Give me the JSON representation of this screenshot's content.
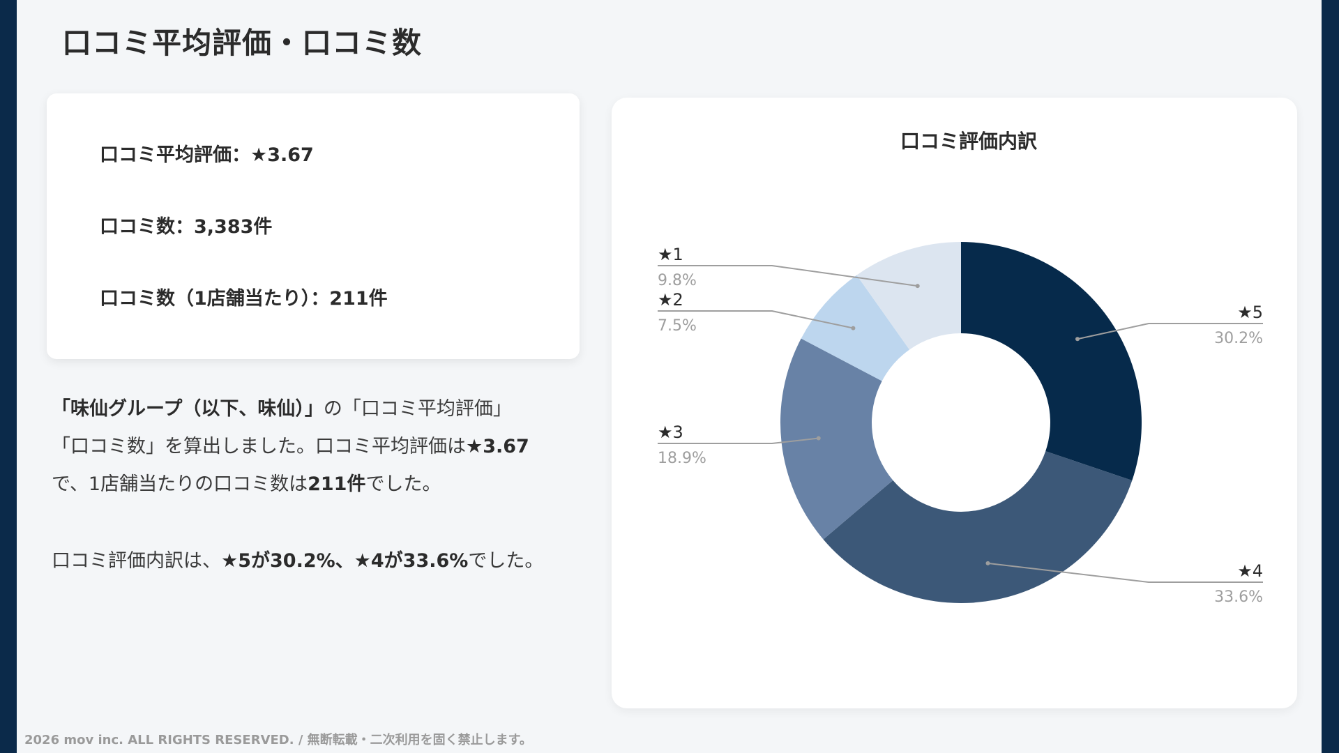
{
  "page": {
    "title": "口コミ平均評価・口コミ数",
    "footer": "2026 mov inc. ALL RIGHTS RESERVED. / 無断転載・二次利用を固く禁止します。"
  },
  "stats": {
    "avg_rating": "口コミ平均評価：★3.67",
    "review_count": "口コミ数：3,383件",
    "per_store": "口コミ数（1店舗当たり）：211件"
  },
  "description": {
    "line1_bold": "「味仙グループ（以下、味仙）」",
    "line1_rest": "の「口コミ平均評価」",
    "line2_a": "「口コミ数」を算出しました。口コミ平均評価は",
    "line2_b": "★3.67",
    "line3_a": "で、1店舗当たりの口コミ数は",
    "line3_b": "211件",
    "line3_c": "でした。",
    "line4_a": "口コミ評価内訳は、",
    "line4_b": "★5が30.2%、★4が33.6%",
    "line4_c": "でした。"
  },
  "chart_data": {
    "type": "pie",
    "title": "口コミ評価内訳",
    "donut": true,
    "slices": [
      {
        "label": "★5",
        "pct_label": "30.2%",
        "value": 30.2,
        "color": "#062a4b"
      },
      {
        "label": "★4",
        "pct_label": "33.6%",
        "value": 33.6,
        "color": "#3c5878"
      },
      {
        "label": "★3",
        "pct_label": "18.9%",
        "value": 18.9,
        "color": "#6882a6"
      },
      {
        "label": "★2",
        "pct_label": "7.5%",
        "value": 7.5,
        "color": "#bdd6ee"
      },
      {
        "label": "★1",
        "pct_label": "9.8%",
        "value": 9.8,
        "color": "#dce5f0"
      }
    ]
  }
}
